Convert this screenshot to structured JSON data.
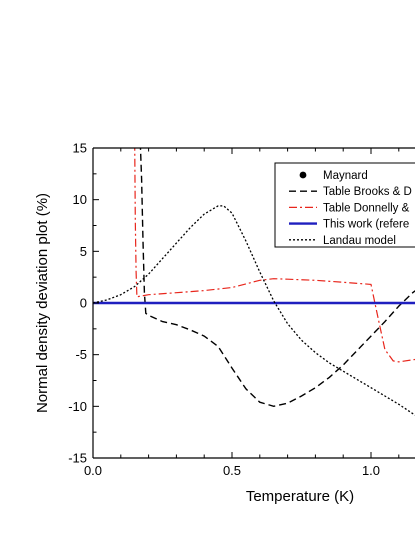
{
  "chart_data": {
    "type": "line",
    "xlabel": "Temperature  (K)",
    "ylabel": "Normal density deviation plot (%)",
    "xlim": [
      0.0,
      1.2
    ],
    "ylim": [
      -15,
      15
    ],
    "x_ticks": [
      "0.0",
      "0.5",
      "1.0"
    ],
    "y_ticks": [
      "-15",
      "-10",
      "-5",
      "0",
      "5",
      "10",
      "15"
    ],
    "grid": false,
    "legend_position": "top-right",
    "series": [
      {
        "name": "Maynard",
        "style": "marker",
        "color": "#000000",
        "x": [],
        "y": []
      },
      {
        "name": "Table Brooks & D",
        "style": "dashed",
        "color": "#000000",
        "x": [
          0.17,
          0.175,
          0.18,
          0.185,
          0.19,
          0.2,
          0.25,
          0.3,
          0.35,
          0.4,
          0.45,
          0.5,
          0.55,
          0.6,
          0.65,
          0.7,
          0.75,
          0.8,
          0.85,
          0.9,
          0.95,
          1.0,
          1.05,
          1.1,
          1.15,
          1.2
        ],
        "y": [
          15.5,
          12,
          6,
          1,
          -1,
          -1.2,
          -1.8,
          -2.1,
          -2.6,
          -3.2,
          -4.2,
          -6.3,
          -8.3,
          -9.6,
          -10.0,
          -9.7,
          -9.0,
          -8.2,
          -7.2,
          -6.0,
          -4.6,
          -3.2,
          -1.8,
          -0.3,
          1.0,
          2.0
        ]
      },
      {
        "name": "Table Donnelly &",
        "style": "dashdot",
        "color": "#e8261c",
        "x": [
          0.15,
          0.152,
          0.155,
          0.158,
          0.2,
          0.3,
          0.4,
          0.5,
          0.6,
          0.65,
          0.7,
          0.8,
          0.9,
          1.0,
          1.01,
          1.03,
          1.05,
          1.08,
          1.1,
          1.15,
          1.2
        ],
        "y": [
          15.5,
          8,
          3,
          0.6,
          0.8,
          1.0,
          1.2,
          1.5,
          2.2,
          2.35,
          2.3,
          2.2,
          2.0,
          1.8,
          0.5,
          -2,
          -4.5,
          -5.6,
          -5.7,
          -5.5,
          -5.3
        ]
      },
      {
        "name": "This work (refere",
        "style": "solid",
        "color": "#1f1fbf",
        "x": [
          0.0,
          1.2
        ],
        "y": [
          0.0,
          0.0
        ]
      },
      {
        "name": "Landau model",
        "style": "dotted",
        "color": "#000000",
        "x": [
          0.0,
          0.05,
          0.1,
          0.15,
          0.2,
          0.25,
          0.3,
          0.35,
          0.4,
          0.45,
          0.47,
          0.5,
          0.55,
          0.6,
          0.65,
          0.7,
          0.75,
          0.8,
          0.85,
          0.9,
          0.95,
          1.0,
          1.05,
          1.1,
          1.15,
          1.2
        ],
        "y": [
          0.0,
          0.3,
          0.8,
          1.6,
          2.8,
          4.3,
          5.8,
          7.3,
          8.6,
          9.4,
          9.4,
          8.7,
          6.0,
          3.0,
          0.2,
          -2.0,
          -3.6,
          -4.8,
          -5.8,
          -6.6,
          -7.4,
          -8.2,
          -9.0,
          -9.8,
          -10.7,
          -11.5
        ]
      }
    ]
  }
}
